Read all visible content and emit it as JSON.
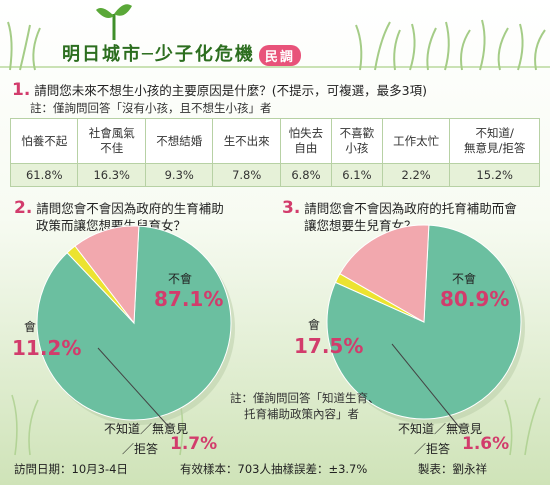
{
  "header": {
    "title": "明日城市─少子化危機",
    "badge": "民調"
  },
  "q1": {
    "number": "1.",
    "question": "請問您未來不想生小孩的主要原因是什麼？(不提示，可複選，最多3項)",
    "note": "註：僅詢問回答「沒有小孩，且不想生小孩」者",
    "table": {
      "headers": [
        "怕養不起",
        "社會風氣不佳",
        "不想結婚",
        "生不出來",
        "怕失去自由",
        "不喜歡小孩",
        "工作太忙",
        "不知道/無意見/拒答"
      ],
      "header_lines": [
        [
          "怕養不起"
        ],
        [
          "社會風氣",
          "不佳"
        ],
        [
          "不想結婚"
        ],
        [
          "生不出來"
        ],
        [
          "怕失去",
          "自由"
        ],
        [
          "不喜歡",
          "小孩"
        ],
        [
          "工作太忙"
        ],
        [
          "不知道/",
          "無意見/拒答"
        ]
      ],
      "values": [
        "61.8%",
        "16.3%",
        "9.3%",
        "7.8%",
        "6.8%",
        "6.1%",
        "2.2%",
        "15.2%"
      ]
    }
  },
  "q2": {
    "number": "2.",
    "question_line1": "請問您會不會因為政府的生育補助",
    "question_line2": "政策而讓您想要生兒育女？",
    "no_label": "不會",
    "no_value": "87.1%",
    "yes_label": "會",
    "yes_value": "11.2%",
    "dk_label1": "不知道／無意見",
    "dk_label2": "／拒答",
    "dk_value": "1.7%"
  },
  "q3": {
    "number": "3.",
    "question_line1": "請問您會不會因為政府的托育補助而會",
    "question_line2": "讓您想要生兒育女？",
    "no_label": "不會",
    "no_value": "80.9%",
    "yes_label": "會",
    "yes_value": "17.5%",
    "dk_label1": "不知道／無意見",
    "dk_label2": "／拒答",
    "dk_value": "1.6%",
    "note1": "註：僅詢問回答「知道生育、",
    "note2": "托育補助政策內容」者"
  },
  "footer": {
    "date": "訪問日期：10月3-4日",
    "sample": "有效樣本：703人抽樣誤差：±3.7%",
    "maker": "製表：劉永祥"
  },
  "colors": {
    "no": "#6bbfa0",
    "yes": "#f2a8ae",
    "dk": "#ece330",
    "accent": "#d23c6c",
    "title": "#2c6e1f"
  },
  "chart_data": [
    {
      "type": "table",
      "title": "請問您未來不想生小孩的主要原因是什麼？(不提示，可複選，最多3項)",
      "categories": [
        "怕養不起",
        "社會風氣不佳",
        "不想結婚",
        "生不出來",
        "怕失去自由",
        "不喜歡小孩",
        "工作太忙",
        "不知道/無意見/拒答"
      ],
      "values": [
        61.8,
        16.3,
        9.3,
        7.8,
        6.8,
        6.1,
        2.2,
        15.2
      ]
    },
    {
      "type": "pie",
      "title": "請問您會不會因為政府的生育補助政策而讓您想要生兒育女？",
      "categories": [
        "不會",
        "會",
        "不知道／無意見／拒答"
      ],
      "values": [
        87.1,
        11.2,
        1.7
      ]
    },
    {
      "type": "pie",
      "title": "請問您會不會因為政府的托育補助而會讓您想要生兒育女？",
      "categories": [
        "不會",
        "會",
        "不知道／無意見／拒答"
      ],
      "values": [
        80.9,
        17.5,
        1.6
      ]
    }
  ]
}
